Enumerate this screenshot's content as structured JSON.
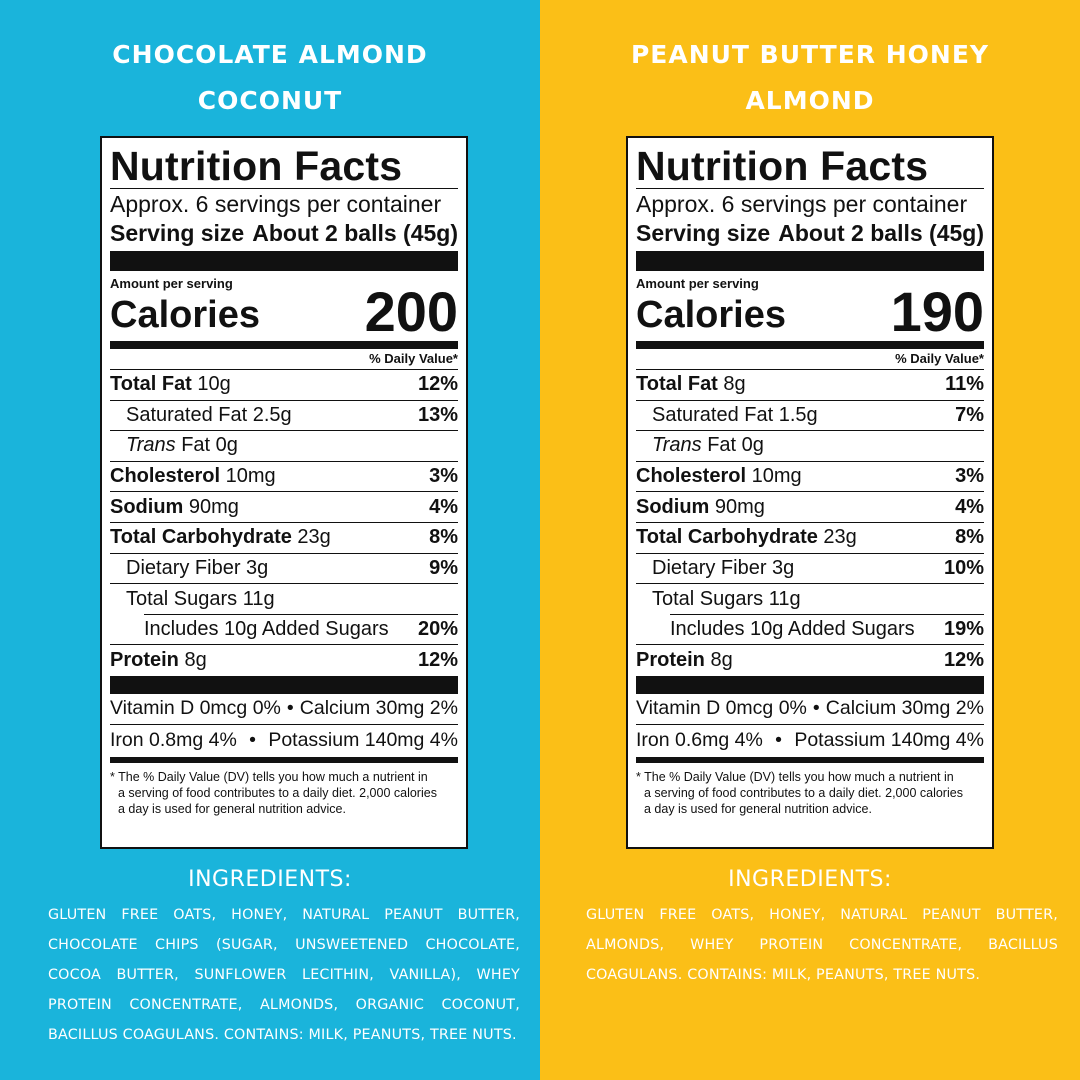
{
  "colors": {
    "left_bg": "#1ab4db",
    "right_bg": "#fbbf17",
    "label_ink": "#111111",
    "label_bg": "#ffffff"
  },
  "common": {
    "nf_title": "Nutrition Facts",
    "servings_per_container": "Approx. 6 servings per container",
    "serving_size_label": "Serving size",
    "serving_size_value": "About 2 balls (45g)",
    "amount_per_serving": "Amount per serving",
    "calories_label": "Calories",
    "dv_header": "% Daily Value*",
    "footnote_line1": "* The % Daily Value (DV) tells you how much a nutrient in",
    "footnote_line2": "a serving of food contributes to a daily diet. 2,000 calories",
    "footnote_line3": "a day is used for general nutrition advice.",
    "ingredients_title": "INGREDIENTS:",
    "bullet": "•"
  },
  "left": {
    "flavor_line1": "CHOCOLATE ALMOND",
    "flavor_line2": "COCONUT",
    "calories": "200",
    "rows": [
      {
        "bold": "Total Fat",
        "rest": " 10g",
        "pct": "12%"
      },
      {
        "bold": "",
        "rest": "Saturated Fat 2.5g",
        "pct": "13%"
      },
      {
        "italic": "Trans",
        "rest": " Fat 0g",
        "pct": ""
      },
      {
        "bold": "Cholesterol",
        "rest": " 10mg",
        "pct": "3%"
      },
      {
        "bold": "Sodium",
        "rest": " 90mg",
        "pct": "4%"
      },
      {
        "bold": "Total Carbohydrate",
        "rest": " 23g",
        "pct": "8%"
      },
      {
        "bold": "",
        "rest": "Dietary Fiber 3g",
        "pct": "9%"
      },
      {
        "bold": "",
        "rest": "Total Sugars 11g",
        "pct": ""
      },
      {
        "bold": "",
        "rest": "Includes 10g Added Sugars",
        "pct": "20%"
      },
      {
        "bold": "Protein",
        "rest": " 8g",
        "pct": "12%"
      }
    ],
    "vit_d": "Vitamin D 0mcg 0%",
    "calcium": "Calcium 30mg 2%",
    "iron": "Iron 0.8mg 4%",
    "potassium": "Potassium 140mg 4%",
    "ingredients": "GLUTEN FREE OATS, HONEY, NATURAL PEANUT BUTTER, CHOCOLATE CHIPS (SUGAR, UNSWEETENED CHOCOLATE, COCOA BUTTER, SUNFLOWER LECITHIN, VANILLA), WHEY PROTEIN CONCENTRATE, ALMONDS, ORGANIC COCONUT, BACILLUS COAGULANS. CONTAINS: MILK, PEANUTS, TREE NUTS."
  },
  "right": {
    "flavor_line1": "PEANUT BUTTER HONEY",
    "flavor_line2": "ALMOND",
    "calories": "190",
    "rows": [
      {
        "bold": "Total Fat",
        "rest": " 8g",
        "pct": "11%"
      },
      {
        "bold": "",
        "rest": "Saturated Fat 1.5g",
        "pct": "7%"
      },
      {
        "italic": "Trans",
        "rest": " Fat 0g",
        "pct": ""
      },
      {
        "bold": "Cholesterol",
        "rest": " 10mg",
        "pct": "3%"
      },
      {
        "bold": "Sodium",
        "rest": " 90mg",
        "pct": "4%"
      },
      {
        "bold": "Total Carbohydrate",
        "rest": " 23g",
        "pct": "8%"
      },
      {
        "bold": "",
        "rest": "Dietary Fiber 3g",
        "pct": "10%"
      },
      {
        "bold": "",
        "rest": "Total Sugars 11g",
        "pct": ""
      },
      {
        "bold": "",
        "rest": "Includes 10g Added Sugars",
        "pct": "19%"
      },
      {
        "bold": "Protein",
        "rest": " 8g",
        "pct": "12%"
      }
    ],
    "vit_d": "Vitamin D 0mcg 0%",
    "calcium": "Calcium 30mg 2%",
    "iron": "Iron 0.6mg 4%",
    "potassium": "Potassium 140mg 4%",
    "ingredients": "GLUTEN FREE OATS, HONEY, NATURAL PEANUT BUTTER, ALMONDS, WHEY PROTEIN CONCENTRATE, BACILLUS COAGULANS. CONTAINS: MILK, PEANUTS, TREE NUTS."
  }
}
